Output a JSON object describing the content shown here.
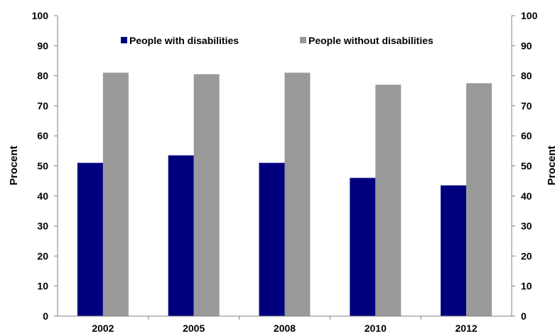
{
  "chart_data": {
    "type": "bar",
    "categories": [
      "2002",
      "2005",
      "2008",
      "2010",
      "2012"
    ],
    "series": [
      {
        "name": "People with disabilities",
        "values": [
          51,
          53.5,
          51,
          46,
          43.5
        ],
        "color": "#00007f"
      },
      {
        "name": "People without disabilities",
        "values": [
          81,
          80.5,
          81,
          77,
          77.5
        ],
        "color": "#999999"
      }
    ],
    "ylabel_left": "Procent",
    "ylabel_right": "Procent",
    "ylim": [
      0,
      100
    ],
    "yticks": [
      0,
      10,
      20,
      30,
      40,
      50,
      60,
      70,
      80,
      90,
      100
    ],
    "grid": false,
    "legend_position": "top"
  }
}
